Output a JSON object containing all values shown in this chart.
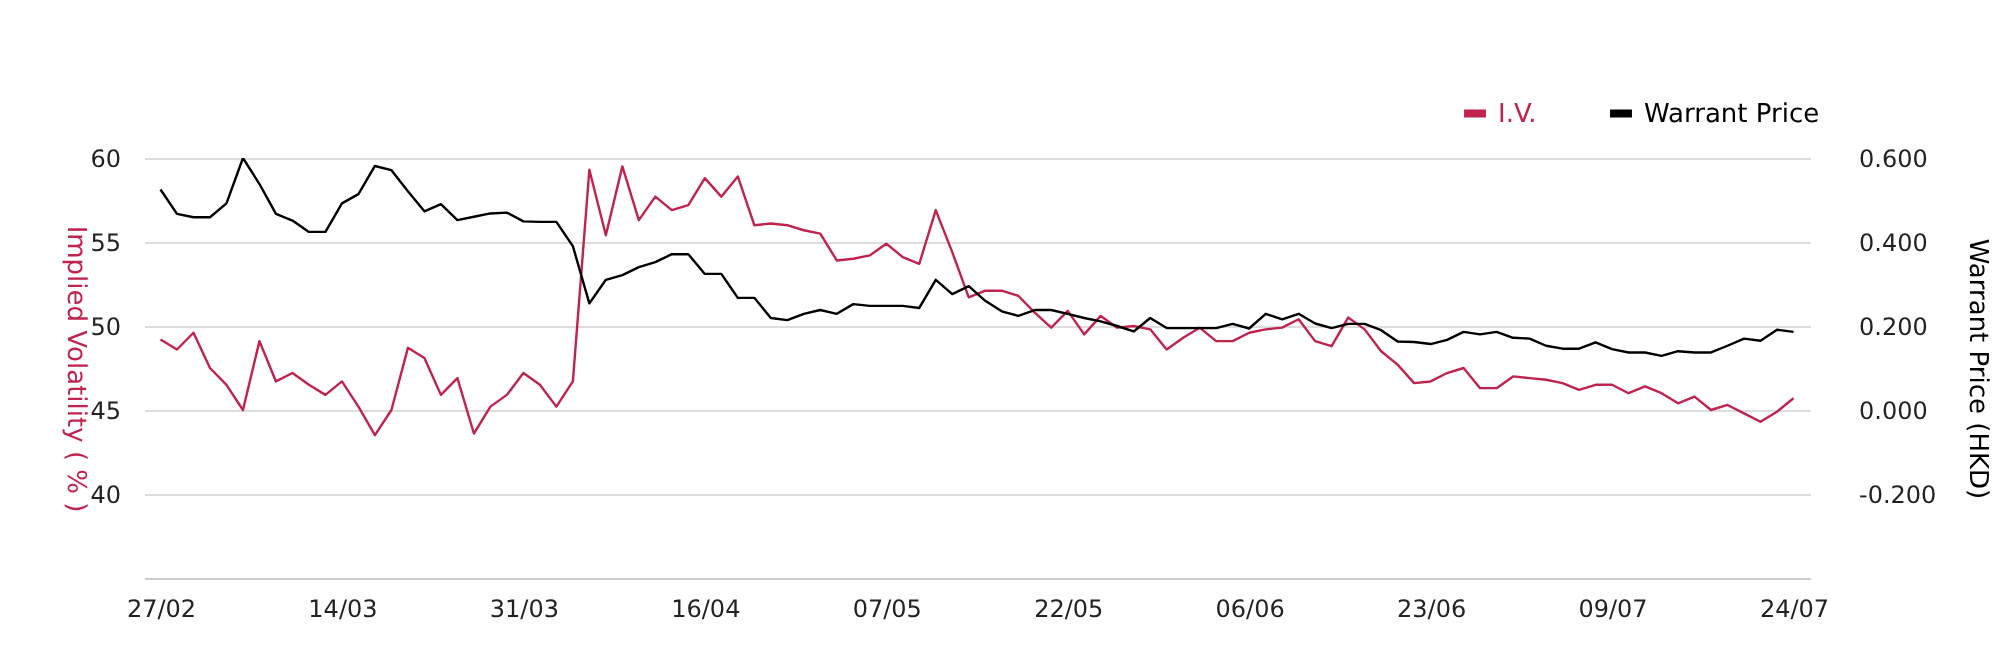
{
  "chart_data": {
    "type": "line",
    "categories": [
      "27/02",
      null,
      null,
      null,
      null,
      null,
      null,
      null,
      null,
      null,
      null,
      "14/03",
      null,
      null,
      null,
      null,
      null,
      null,
      null,
      null,
      null,
      null,
      "31/03",
      null,
      null,
      null,
      null,
      null,
      null,
      null,
      null,
      null,
      null,
      "16/04",
      null,
      null,
      null,
      null,
      null,
      null,
      null,
      null,
      null,
      null,
      "07/05",
      null,
      null,
      null,
      null,
      null,
      null,
      null,
      null,
      null,
      null,
      "22/05",
      null,
      null,
      null,
      null,
      null,
      null,
      null,
      null,
      null,
      null,
      "06/06",
      null,
      null,
      null,
      null,
      null,
      null,
      null,
      null,
      null,
      null,
      "23/06",
      null,
      null,
      null,
      null,
      null,
      null,
      null,
      null,
      null,
      null,
      "09/07",
      null,
      null,
      null,
      null,
      null,
      null,
      null,
      null,
      null,
      null,
      "24/07"
    ],
    "series": [
      {
        "name": "I.V.",
        "color": "#c0234e",
        "values": [
          49.2,
          48.6,
          49.6,
          47.5,
          46.5,
          45.0,
          49.1,
          46.7,
          47.2,
          46.5,
          45.9,
          46.7,
          45.2,
          43.5,
          45.0,
          48.7,
          48.1,
          45.9,
          46.9,
          43.6,
          45.2,
          45.9,
          47.2,
          46.5,
          45.2,
          46.7,
          59.3,
          55.4,
          59.5,
          56.3,
          57.7,
          56.9,
          57.2,
          58.8,
          57.7,
          58.9,
          56.0,
          56.1,
          56.0,
          55.7,
          55.5,
          53.9,
          54.0,
          54.2,
          54.9,
          54.1,
          53.7,
          56.9,
          54.4,
          51.7,
          52.1,
          52.1,
          51.8,
          50.8,
          49.9,
          50.9,
          49.5,
          50.6,
          49.9,
          50.0,
          49.8,
          48.6,
          49.3,
          49.9,
          49.1,
          49.1,
          49.6,
          49.8,
          49.9,
          50.4,
          49.1,
          48.8,
          50.5,
          49.8,
          48.5,
          47.7,
          46.6,
          46.7,
          47.2,
          47.5,
          46.3,
          46.3,
          47.0,
          46.9,
          46.8,
          46.6,
          46.2,
          46.5,
          46.5,
          46.0,
          46.4,
          46.0,
          45.4,
          45.8,
          45.0,
          45.3,
          44.8,
          44.3,
          44.9,
          45.7
        ]
      },
      {
        "name": "Warrant Price",
        "color": "#000000",
        "axis": "y2",
        "values": [
          0.525,
          0.467,
          0.459,
          0.459,
          0.492,
          0.6,
          0.538,
          0.467,
          0.451,
          0.424,
          0.424,
          0.492,
          0.514,
          0.581,
          0.571,
          0.521,
          0.473,
          0.49,
          0.452,
          0.46,
          0.468,
          0.47,
          0.449,
          0.448,
          0.448,
          0.39,
          0.254,
          0.31,
          0.321,
          0.34,
          0.352,
          0.371,
          0.371,
          0.324,
          0.324,
          0.267,
          0.267,
          0.219,
          0.214,
          0.229,
          0.238,
          0.229,
          0.252,
          0.248,
          0.248,
          0.248,
          0.243,
          0.31,
          0.276,
          0.295,
          0.26,
          0.235,
          0.224,
          0.238,
          0.238,
          0.229,
          0.219,
          0.211,
          0.2,
          0.187,
          0.219,
          0.195,
          0.195,
          0.195,
          0.195,
          0.205,
          0.194,
          0.229,
          0.216,
          0.229,
          0.206,
          0.195,
          0.205,
          0.205,
          0.19,
          0.163,
          0.162,
          0.157,
          0.167,
          0.186,
          0.18,
          0.186,
          0.172,
          0.17,
          0.153,
          0.146,
          0.146,
          0.161,
          0.145,
          0.137,
          0.137,
          0.129,
          0.14,
          0.137,
          0.137,
          0.153,
          0.17,
          0.165,
          0.191,
          0.186
        ]
      }
    ],
    "ylabel": "Implied Volatility ( % )",
    "y2label": "Warrant Price (HKD)",
    "ylim": [
      35,
      60
    ],
    "yticks": [
      40,
      45,
      50,
      55,
      60
    ],
    "y2lim": [
      -0.4,
      0.6
    ],
    "y2ticks": [
      {
        "value": -0.2,
        "label": "-0.200"
      },
      {
        "value": 0,
        "label": "0.000"
      },
      {
        "value": 0.2,
        "label": "0.200"
      },
      {
        "value": 0.4,
        "label": "0.400"
      },
      {
        "value": 0.6,
        "label": "0.600"
      }
    ],
    "grid": "y",
    "legend": "top right",
    "line_style": "solid",
    "marker": "none"
  }
}
